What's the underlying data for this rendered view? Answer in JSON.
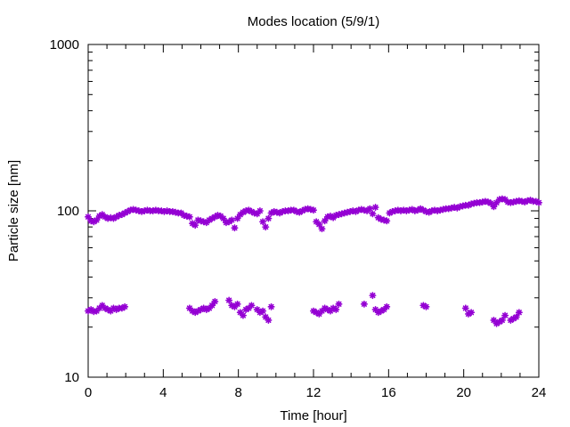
{
  "chart_data": {
    "type": "scatter",
    "title": "Modes location (5/9/1)",
    "xlabel": "Time [hour]",
    "ylabel": "Particle size [nm]",
    "xlim": [
      0,
      24
    ],
    "ylim": [
      10,
      1000
    ],
    "yscale": "log",
    "x_ticks": [
      0,
      4,
      8,
      12,
      16,
      20,
      24
    ],
    "x_tick_labels": [
      "0",
      "4",
      "8",
      "12",
      "16",
      "20",
      "24"
    ],
    "y_ticks": [
      10,
      100,
      1000
    ],
    "y_tick_labels": [
      "10",
      "100",
      "1000"
    ],
    "grid": false,
    "marker_color": "#9400d3",
    "series": [
      {
        "x": [
          0.0,
          0.15,
          0.3,
          0.45,
          0.6,
          0.75,
          0.9,
          1.05,
          1.2,
          1.35,
          1.5,
          1.65,
          1.8,
          1.95,
          2.1,
          2.25,
          2.4,
          2.55,
          2.7,
          2.85,
          3.0,
          3.15,
          3.3,
          3.45,
          3.6,
          3.75,
          3.9,
          4.05,
          4.2,
          4.35,
          4.5,
          4.65,
          4.8,
          4.95,
          5.1,
          5.25,
          5.4,
          5.55,
          5.7,
          5.85,
          6.0,
          6.15,
          6.3,
          6.45,
          6.6,
          6.75,
          6.9,
          7.05,
          7.2,
          7.35,
          7.5,
          7.65,
          7.8,
          7.95,
          8.1,
          8.25,
          8.4,
          8.55,
          8.7,
          8.85,
          9.0,
          9.15,
          9.3,
          9.45,
          9.6,
          9.75,
          9.9,
          10.05,
          10.2,
          10.35,
          10.5,
          10.65,
          10.8,
          10.95,
          11.1,
          11.25,
          11.4,
          11.55,
          11.7,
          11.85,
          12.0,
          12.15,
          12.3,
          12.45,
          12.6,
          12.75,
          12.9,
          13.05,
          13.2,
          13.35,
          13.5,
          13.65,
          13.8,
          13.95,
          14.1,
          14.25,
          14.4,
          14.55,
          14.7,
          14.85,
          15.0,
          15.15,
          15.3,
          15.45,
          15.6,
          15.75,
          15.9,
          16.05,
          16.2,
          16.35,
          16.5,
          16.65,
          16.8,
          16.95,
          17.1,
          17.25,
          17.4,
          17.55,
          17.7,
          17.85,
          18.0,
          18.15,
          18.3,
          18.45,
          18.6,
          18.75,
          18.9,
          19.05,
          19.2,
          19.35,
          19.5,
          19.65,
          19.8,
          19.95,
          20.1,
          20.25,
          20.4,
          20.55,
          20.7,
          20.85,
          21.0,
          21.15,
          21.3,
          21.45,
          21.6,
          21.75,
          21.9,
          22.05,
          22.2,
          22.35,
          22.5,
          22.65,
          22.8,
          22.95,
          23.1,
          23.25,
          23.4,
          23.55,
          23.7,
          23.85,
          24.0
        ],
        "y": [
          92,
          87,
          86,
          88,
          93,
          95,
          92,
          90,
          91,
          90,
          92,
          94,
          95,
          97,
          99,
          101,
          102,
          101,
          100,
          99,
          100,
          101,
          100,
          100,
          101,
          100,
          100,
          99,
          100,
          99,
          99,
          98,
          97,
          97,
          94,
          93,
          92,
          84,
          82,
          88,
          87,
          86,
          85,
          88,
          90,
          92,
          94,
          93,
          90,
          85,
          86,
          88,
          79,
          90,
          95,
          98,
          100,
          101,
          99,
          97,
          96,
          100,
          86,
          80,
          90,
          97,
          99,
          98,
          97,
          99,
          100,
          100,
          101,
          101,
          99,
          98,
          100,
          102,
          103,
          102,
          101,
          86,
          83,
          78,
          87,
          92,
          93,
          91,
          94,
          95,
          96,
          97,
          98,
          99,
          100,
          99,
          101,
          102,
          101,
          100,
          103,
          96,
          105,
          91,
          89,
          88,
          87,
          97,
          99,
          100,
          101,
          100,
          101,
          100,
          101,
          102,
          100,
          101,
          103,
          101,
          99,
          98,
          100,
          101,
          100,
          101,
          102,
          103,
          103,
          104,
          105,
          104,
          106,
          107,
          108,
          108,
          110,
          111,
          112,
          112,
          113,
          114,
          113,
          111,
          106,
          112,
          117,
          118,
          117,
          113,
          112,
          113,
          114,
          115,
          114,
          113,
          115,
          116,
          114,
          114,
          112
        ]
      },
      {
        "x": [
          0.0,
          0.15,
          0.3,
          0.45,
          0.6,
          0.75,
          0.9,
          1.05,
          1.2,
          1.35,
          1.5,
          1.65,
          1.8,
          1.95,
          5.4,
          5.55,
          5.7,
          5.85,
          6.0,
          6.15,
          6.3,
          6.45,
          6.6,
          6.75,
          7.5,
          7.65,
          7.8,
          7.95,
          8.1,
          8.25,
          8.4,
          8.55,
          8.7,
          9.0,
          9.15,
          9.3,
          9.45,
          9.6,
          9.75,
          12.0,
          12.15,
          12.3,
          12.45,
          12.6,
          12.75,
          12.9,
          13.05,
          13.2,
          13.35,
          14.7,
          15.15,
          15.3,
          15.45,
          15.6,
          15.75,
          15.9,
          17.85,
          18.0,
          20.1,
          20.25,
          20.4,
          21.6,
          21.75,
          21.9,
          22.05,
          22.2,
          22.5,
          22.65,
          22.8,
          22.95
        ],
        "y": [
          25,
          25.5,
          24.8,
          25,
          26,
          27,
          26,
          25.5,
          25,
          26,
          25.5,
          26,
          26,
          26.5,
          26,
          25,
          24.5,
          25,
          25.5,
          26,
          25.5,
          26,
          27,
          28.5,
          29,
          27,
          26.5,
          27.5,
          24.5,
          23.5,
          25.5,
          26,
          27,
          25.5,
          24.5,
          25,
          23,
          22,
          26.5,
          25,
          24.5,
          24,
          25,
          26,
          25.5,
          25,
          26,
          25.5,
          27.5,
          27.5,
          31,
          25.5,
          24.5,
          25,
          25.5,
          26.5,
          27,
          26.5,
          26,
          24,
          24.5,
          22,
          21,
          21.5,
          22,
          23.5,
          22,
          22.5,
          23,
          24.5
        ]
      }
    ]
  }
}
